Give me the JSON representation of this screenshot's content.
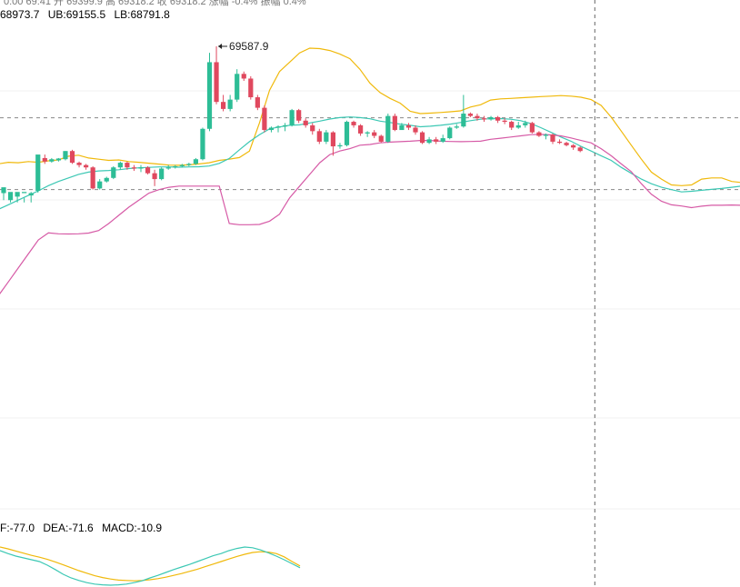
{
  "top_strip": "0:00 69:41 开 69399.9 高 69318.2 收 69318.2 涨幅 -0.4% 振幅 0.4%",
  "boll_legend": {
    "mb": "68973.7",
    "ub": "UB:69155.5",
    "lb": "LB:68791.8"
  },
  "high_label": "69587.9",
  "macd_legend": {
    "dif": "F:-77.0",
    "dea": "DEA:-71.6",
    "macd": "MACD:-10.9"
  },
  "colors": {
    "up": "#2dbd96",
    "down": "#e0485e",
    "mb": "#3cc8b4",
    "ub": "#f0b90b",
    "lb": "#d65aa6",
    "dif": "#3cc8b4",
    "dea": "#f0b90b",
    "macd": "#e0485e",
    "crosshair": "#666666",
    "grid": "#f0f0f0"
  },
  "chart_data": {
    "type": "candlestick",
    "indicators": [
      "BOLL",
      "MACD"
    ],
    "ylim": [
      68620,
      69650
    ],
    "reference_lines": [
      69282,
      68975
    ],
    "crosshair_index": 86,
    "candles": [
      [
        68960,
        68985,
        68965,
        68930
      ],
      [
        68930,
        68965,
        68960,
        68920
      ],
      [
        68945,
        68965,
        68955,
        68920
      ],
      [
        68960,
        68965,
        68940,
        68920
      ],
      [
        68950,
        68960,
        68965,
        68920
      ],
      [
        68970,
        69125,
        69110,
        68962
      ],
      [
        69110,
        69095,
        69125,
        69085
      ],
      [
        69095,
        69105,
        69110,
        69090
      ],
      [
        69100,
        69108,
        69110,
        69095
      ],
      [
        69105,
        69140,
        69140,
        69100
      ],
      [
        69140,
        69090,
        69145,
        69085
      ],
      [
        69090,
        69080,
        69095,
        69070
      ],
      [
        69080,
        69070,
        69085,
        69060
      ],
      [
        69070,
        68980,
        69075,
        68975
      ],
      [
        68980,
        69010,
        69020,
        68975
      ],
      [
        69010,
        69025,
        69030,
        69005
      ],
      [
        69025,
        69070,
        69075,
        69020
      ],
      [
        69070,
        69090,
        69095,
        69060
      ],
      [
        69090,
        69070,
        69095,
        69060
      ],
      [
        69070,
        69065,
        69080,
        69055
      ],
      [
        69065,
        69070,
        69080,
        69050
      ],
      [
        69070,
        69045,
        69075,
        69040
      ],
      [
        69045,
        69020,
        69060,
        68990
      ],
      [
        69020,
        69065,
        69070,
        69015
      ],
      [
        69065,
        69070,
        69080,
        69060
      ],
      [
        69070,
        69075,
        69080,
        69065
      ],
      [
        69075,
        69080,
        69085,
        69070
      ],
      [
        69080,
        69085,
        69090,
        69075
      ],
      [
        69085,
        69105,
        69110,
        69080
      ],
      [
        69105,
        69235,
        69240,
        69100
      ],
      [
        69235,
        69520,
        69560,
        69225
      ],
      [
        69520,
        69350,
        69587.9,
        69340
      ],
      [
        69350,
        69320,
        69380,
        69310
      ],
      [
        69320,
        69360,
        69380,
        69310
      ],
      [
        69360,
        69470,
        69490,
        69350
      ],
      [
        69470,
        69450,
        69480,
        69440
      ],
      [
        69450,
        69370,
        69460,
        69360
      ],
      [
        69370,
        69325,
        69380,
        69315
      ],
      [
        69325,
        69230,
        69335,
        69220
      ],
      [
        69230,
        69240,
        69245,
        69220
      ],
      [
        69240,
        69245,
        69250,
        69220
      ],
      [
        69245,
        69250,
        69260,
        69225
      ],
      [
        69250,
        69315,
        69320,
        69245
      ],
      [
        69315,
        69270,
        69320,
        69260
      ],
      [
        69270,
        69250,
        69280,
        69240
      ],
      [
        69250,
        69225,
        69260,
        69210
      ],
      [
        69225,
        69180,
        69235,
        69170
      ],
      [
        69180,
        69220,
        69230,
        69170
      ],
      [
        69220,
        69160,
        69225,
        69120
      ],
      [
        69160,
        69165,
        69175,
        69150
      ],
      [
        69165,
        69265,
        69270,
        69160
      ],
      [
        69265,
        69250,
        69270,
        69240
      ],
      [
        69250,
        69215,
        69255,
        69205
      ],
      [
        69215,
        69220,
        69225,
        69200
      ],
      [
        69220,
        69205,
        69230,
        69195
      ],
      [
        69205,
        69180,
        69210,
        69175
      ],
      [
        69180,
        69290,
        69300,
        69175
      ],
      [
        69290,
        69230,
        69300,
        69225
      ],
      [
        69230,
        69250,
        69260,
        69240
      ],
      [
        69250,
        69240,
        69260,
        69230
      ],
      [
        69240,
        69220,
        69250,
        69210
      ],
      [
        69220,
        69175,
        69225,
        69170
      ],
      [
        69175,
        69190,
        69200,
        69170
      ],
      [
        69190,
        69180,
        69200,
        69170
      ],
      [
        69180,
        69195,
        69210,
        69175
      ],
      [
        69195,
        69240,
        69245,
        69190
      ],
      [
        69240,
        69245,
        69255,
        69235
      ],
      [
        69245,
        69300,
        69380,
        69240
      ],
      [
        69300,
        69290,
        69305,
        69285
      ],
      [
        69290,
        69280,
        69300,
        69270
      ],
      [
        69280,
        69275,
        69290,
        69265
      ],
      [
        69275,
        69285,
        69290,
        69270
      ],
      [
        69285,
        69270,
        69290,
        69260
      ],
      [
        69270,
        69265,
        69280,
        69255
      ],
      [
        69265,
        69240,
        69270,
        69230
      ],
      [
        69240,
        69250,
        69265,
        69235
      ],
      [
        69250,
        69260,
        69270,
        69240
      ],
      [
        69260,
        69220,
        69265,
        69215
      ],
      [
        69220,
        69205,
        69225,
        69200
      ],
      [
        69205,
        69210,
        69215,
        69190
      ],
      [
        69210,
        69180,
        69215,
        69170
      ],
      [
        69180,
        69175,
        69190,
        69170
      ],
      [
        69175,
        69165,
        69180,
        69160
      ],
      [
        69165,
        69155,
        69170,
        69145
      ],
      [
        69155,
        69140,
        69160,
        69135
      ]
    ],
    "ub": [
      69085,
      69092,
      69090,
      69095,
      69092,
      69098,
      69102,
      69118,
      69122,
      69110,
      69105,
      69100,
      69102,
      69095,
      69092,
      69088,
      69084,
      69080,
      69079,
      69081,
      69085,
      69090,
      69100,
      69105,
      69112,
      69140,
      69260,
      69400,
      69480,
      69520,
      69560,
      69580,
      69578,
      69570,
      69555,
      69535,
      69490,
      69430,
      69390,
      69365,
      69345,
      69310,
      69300,
      69302,
      69305,
      69308,
      69312,
      69328,
      69338,
      69358,
      69363,
      69365,
      69368,
      69370,
      69373,
      69375,
      69377,
      69375,
      69370,
      69360,
      69335,
      69285,
      69225,
      69165,
      69105,
      69050,
      69020,
      68995,
      68992,
      68995,
      69020,
      69025,
      69025,
      69010,
      69005
    ],
    "lb": [
      68520,
      68580,
      68640,
      68700,
      68760,
      68790,
      68786,
      68785,
      68786,
      68789,
      68800,
      68830,
      68865,
      68900,
      68930,
      68960,
      68975,
      68985,
      68990,
      68990,
      68990,
      68990,
      68990,
      68830,
      68825,
      68825,
      68826,
      68840,
      68870,
      68940,
      68990,
      69040,
      69090,
      69125,
      69140,
      69150,
      69165,
      69168,
      69175,
      69178,
      69180,
      69182,
      69185,
      69185,
      69182,
      69181,
      69180,
      69181,
      69182,
      69190,
      69195,
      69200,
      69205,
      69210,
      69211,
      69209,
      69205,
      69196,
      69185,
      69175,
      69150,
      69120,
      69085,
      69052,
      69000,
      68955,
      68925,
      68910,
      68905,
      68898,
      68904,
      68908,
      68908,
      68909,
      68908
    ],
    "mb": [
      68890,
      68910,
      68930,
      68950,
      68970,
      68992,
      69010,
      69025,
      69040,
      69050,
      69055,
      69057,
      69060,
      69065,
      69068,
      69070,
      69072,
      69072,
      69071,
      69072,
      69073,
      69076,
      69087,
      69108,
      69145,
      69180,
      69210,
      69235,
      69243,
      69250,
      69252,
      69260,
      69268,
      69277,
      69283,
      69286,
      69283,
      69278,
      69268,
      69262,
      69255,
      69250,
      69244,
      69246,
      69250,
      69255,
      69262,
      69270,
      69276,
      69278,
      69279,
      69276,
      69270,
      69258,
      69240,
      69220,
      69200,
      69182,
      69160,
      69140,
      69120,
      69100,
      69070,
      69045,
      69020,
      69000,
      68985,
      68975,
      68965,
      68968,
      68972,
      68976,
      68980,
      68985,
      68990
    ],
    "dif": [
      -30,
      -38,
      -45,
      -50,
      -55,
      -60,
      -70,
      -82,
      -95,
      -105,
      -112,
      -118,
      -122,
      -124,
      -125,
      -124,
      -122,
      -118,
      -113,
      -105,
      -98,
      -90,
      -82,
      -75,
      -68,
      -60,
      -52,
      -44,
      -38,
      -30,
      -24,
      -20,
      -22,
      -28,
      -36,
      -45,
      -55,
      -66,
      -77
    ],
    "dea": [
      -20,
      -25,
      -31,
      -37,
      -43,
      -48,
      -54,
      -61,
      -69,
      -77,
      -85,
      -92,
      -99,
      -104,
      -108,
      -111,
      -112,
      -113,
      -112,
      -110,
      -107,
      -103,
      -98,
      -93,
      -87,
      -81,
      -74,
      -67,
      -60,
      -53,
      -46,
      -40,
      -35,
      -33,
      -34,
      -38,
      -47,
      -60,
      -72
    ]
  }
}
